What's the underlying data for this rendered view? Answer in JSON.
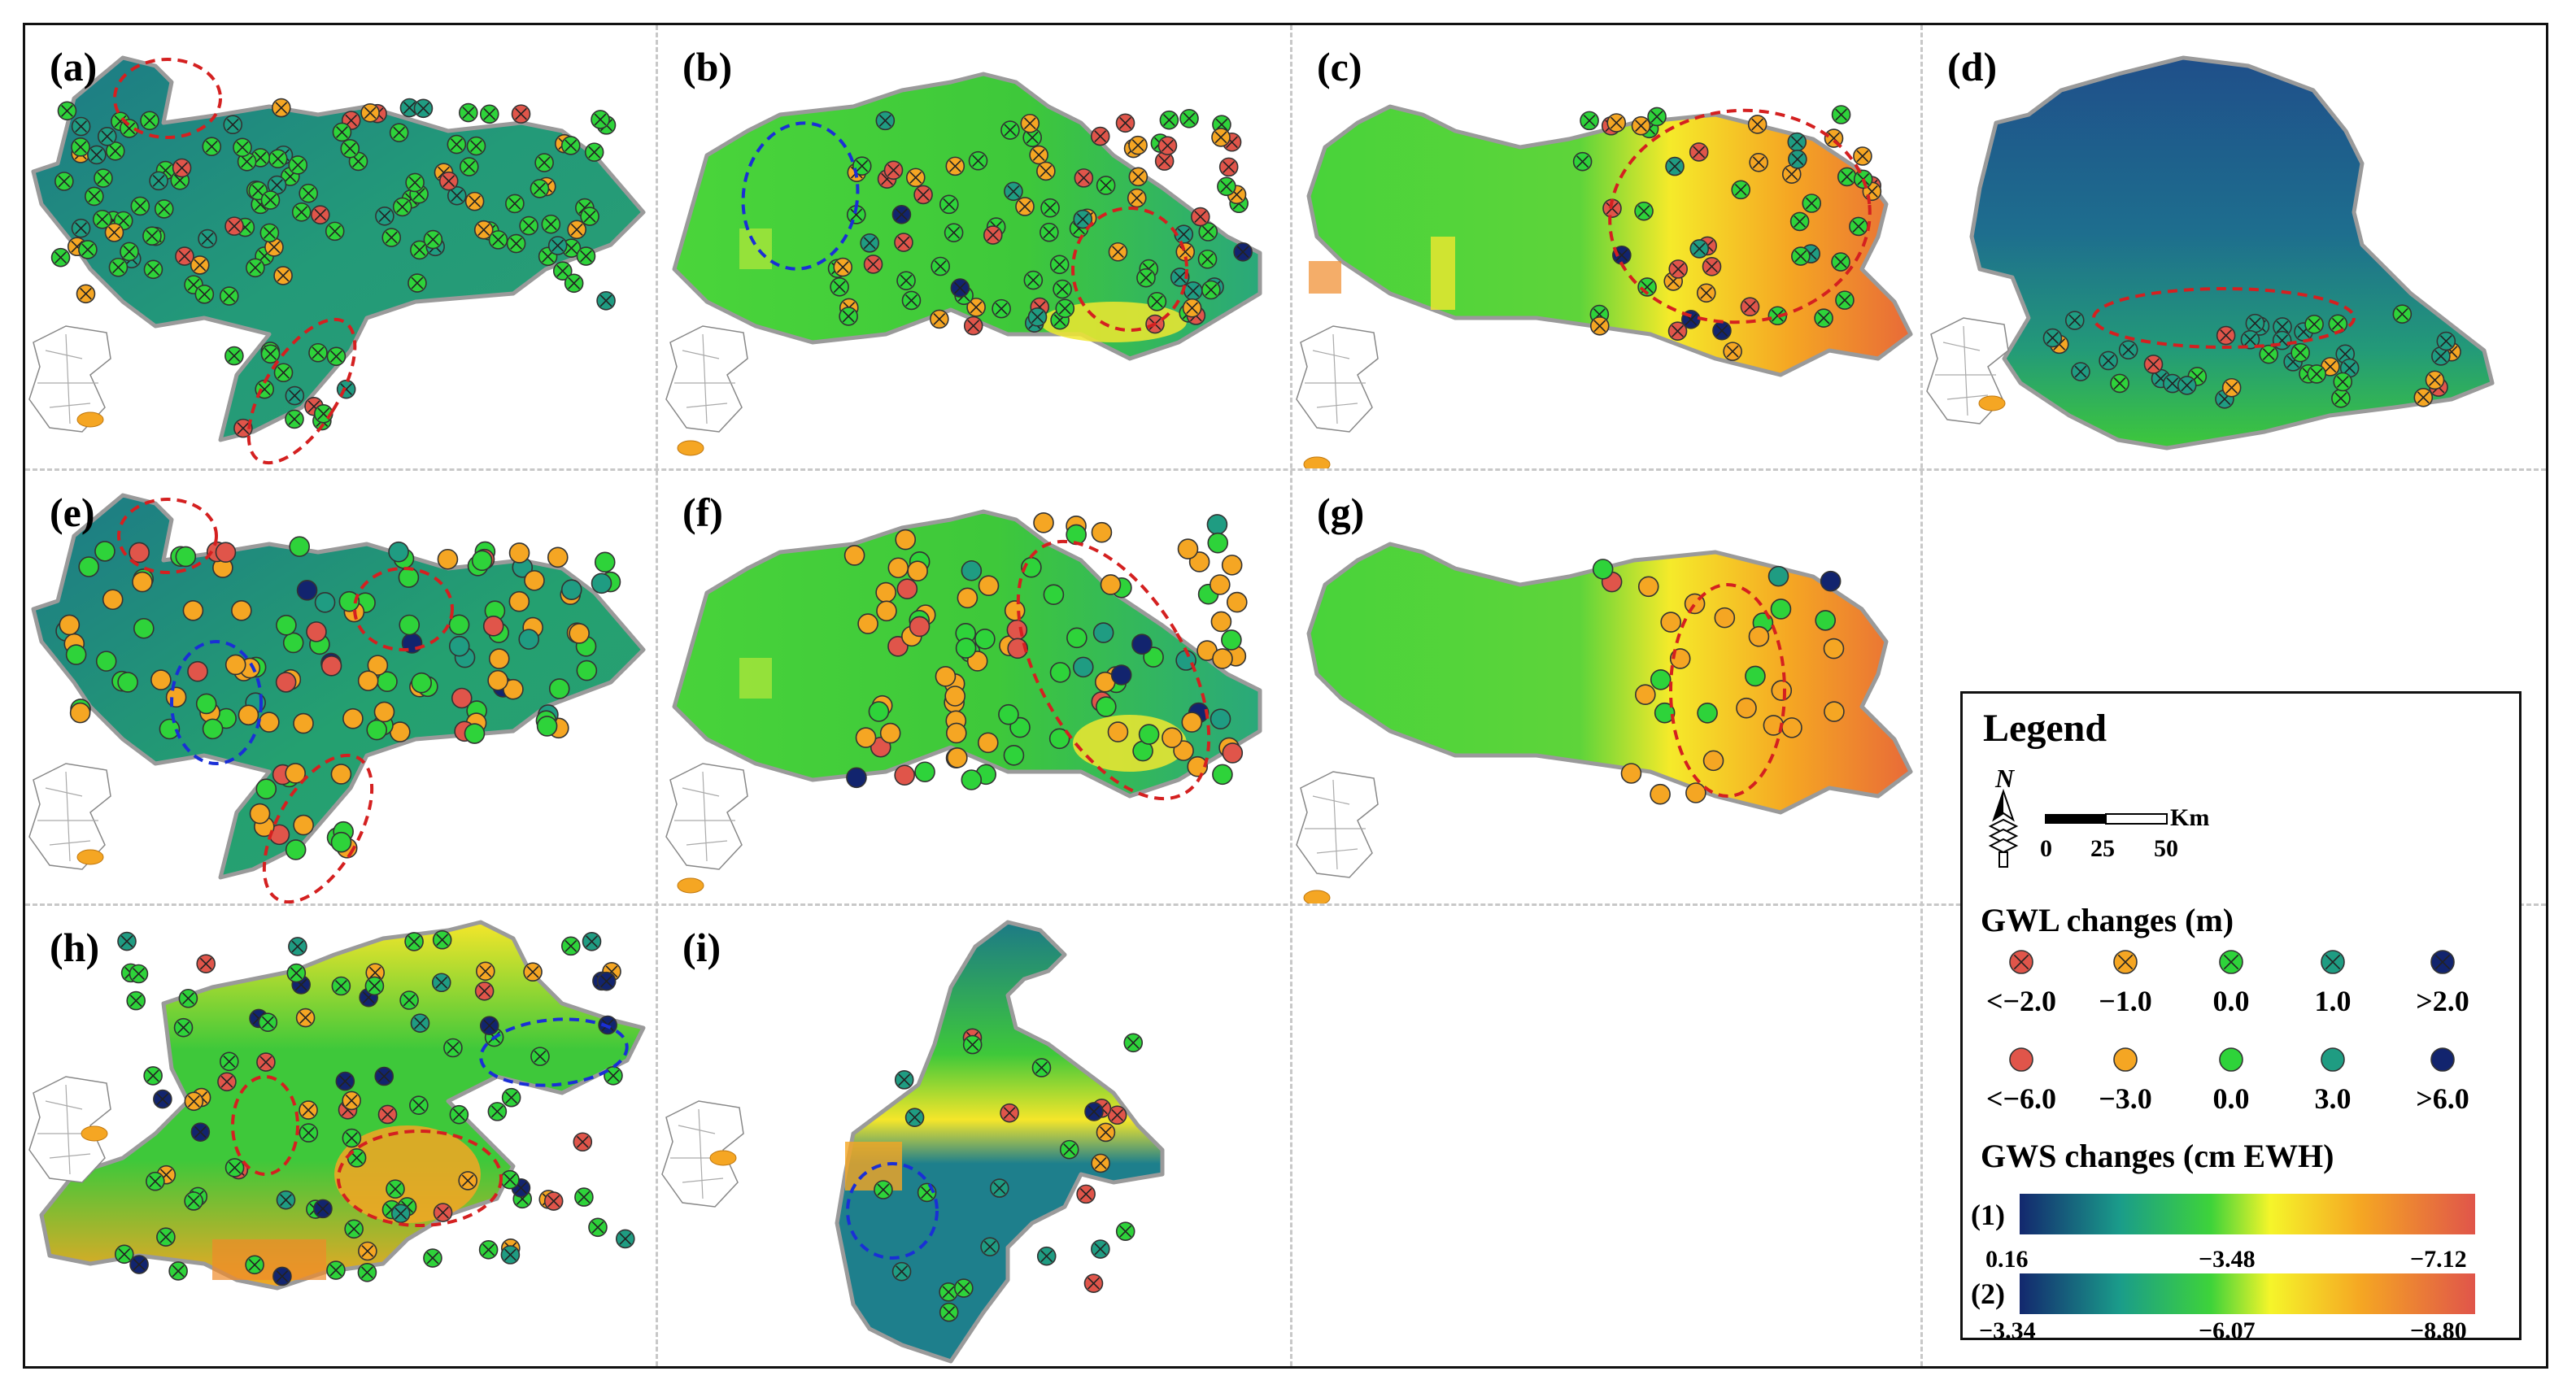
{
  "panels": [
    {
      "id": "a",
      "label": "(a)"
    },
    {
      "id": "b",
      "label": "(b)"
    },
    {
      "id": "c",
      "label": "(c)"
    },
    {
      "id": "d",
      "label": "(d)"
    },
    {
      "id": "e",
      "label": "(e)"
    },
    {
      "id": "f",
      "label": "(f)"
    },
    {
      "id": "g",
      "label": "(g)"
    },
    {
      "id": "h",
      "label": "(h)"
    },
    {
      "id": "i",
      "label": "(i)"
    }
  ],
  "legend": {
    "title": "Legend",
    "north": "N",
    "scale_unit": "Km",
    "scale_ticks": [
      "0",
      "25",
      "50"
    ],
    "gwl_title": "GWL changes (m)",
    "gwl_classes": [
      "<−2.0",
      "−1.0",
      "0.0",
      "1.0",
      ">2.0"
    ],
    "gwl_classes_2": [
      "<−6.0",
      "−3.0",
      "0.0",
      "3.0",
      ">6.0"
    ],
    "gws_title": "GWS changes (cm EWH)",
    "ramp1_label": "(1)",
    "ramp1_ticks": [
      "0.16",
      "−3.48",
      "−7.12"
    ],
    "ramp2_label": "(2)",
    "ramp2_ticks": [
      "−3.34",
      "−6.07",
      "−8.80"
    ]
  },
  "colors": {
    "class1": "#e0554a",
    "class2": "#f5a623",
    "class3": "#2ed33a",
    "class4": "#1f9c82",
    "class5": "#12246e",
    "map_blue": "#1a7a8c",
    "map_green": "#3ec83a",
    "map_yellow": "#f0e830",
    "map_orange": "#f08a2a",
    "boundary": "#9a9a9a",
    "ellipse_red": "#d42020",
    "ellipse_blue": "#1a2fd6"
  }
}
